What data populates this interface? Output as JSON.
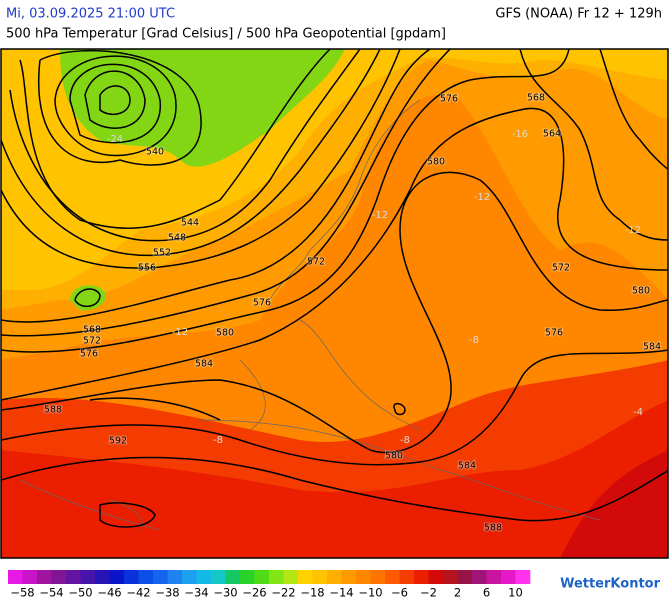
{
  "header": {
    "datetime": "Mi, 03.09.2025 21:00 UTC",
    "model": "GFS (NOAA) Fr 12 + 129h",
    "subtitle": "500 hPa Temperatur [Grad Celsius] / 500 hPa Geopotential [gpdam]"
  },
  "map": {
    "contour_labels": [
      "540",
      "544",
      "548",
      "552",
      "556",
      "568",
      "572",
      "576",
      "576",
      "572",
      "580",
      "584",
      "588",
      "592",
      "580",
      "584",
      "588",
      "576",
      "568",
      "564",
      "580",
      "572",
      "576",
      "580",
      "584"
    ],
    "temperature_labels": [
      "-24",
      "-12",
      "-12",
      "-16",
      "-12",
      "-12",
      "-8",
      "-8",
      "-8",
      "-4"
    ]
  },
  "legend": {
    "colors": [
      "#e619e6",
      "#c814c8",
      "#a014a0",
      "#821496",
      "#6414a0",
      "#4614aa",
      "#2814b4",
      "#0a14c8",
      "#0a32dc",
      "#0a50e6",
      "#1464f0",
      "#1e82f0",
      "#1ea0f0",
      "#14b9e6",
      "#14c8c8",
      "#14c864",
      "#28d228",
      "#50dc14",
      "#82e614",
      "#b4e614",
      "#ffd200",
      "#ffc300",
      "#ffaf00",
      "#ff9b00",
      "#ff8700",
      "#ff7300",
      "#ff5a00",
      "#f53c00",
      "#eb1e00",
      "#d20a0a",
      "#b4141e",
      "#961446",
      "#a01478",
      "#c814a0",
      "#e619c8",
      "#ff32f0"
    ],
    "ticks": [
      "−58",
      "−54",
      "−50",
      "−46",
      "−42",
      "−38",
      "−34",
      "−30",
      "−26",
      "−22",
      "−18",
      "−14",
      "−10",
      "−6",
      "−2",
      "2",
      "6",
      "10"
    ]
  },
  "logo": "WetterKontor"
}
